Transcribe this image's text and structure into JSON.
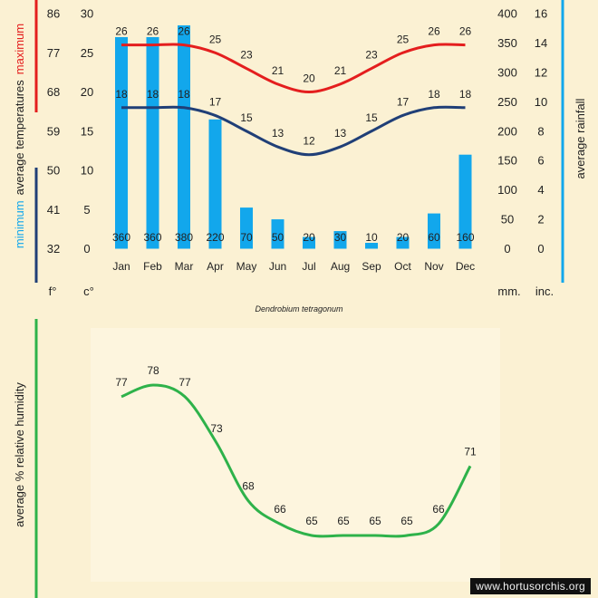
{
  "colors": {
    "background": "#fbf1d3",
    "plot_background": "#fdf5de",
    "maximum": "#e41e1e",
    "minimum": "#203f77",
    "rainfall": "#12a7ec",
    "humidity": "#2eb24a"
  },
  "labels": {
    "maximum": "maximum",
    "average_temperatures": "average temperatures",
    "minimum": "minimum",
    "average_rainfall": "average rainfall",
    "fahrenheit": "f°",
    "celsius": "c°",
    "mm": "mm.",
    "inches": "inc.",
    "species": "Dendrobium tetragonum",
    "humidity_axis": "average % relative humidity",
    "watermark": "www.hortusorchis.org"
  },
  "chart_data": [
    {
      "type": "bar",
      "categories": [
        "Jan",
        "Feb",
        "Mar",
        "Apr",
        "May",
        "Jun",
        "Jul",
        "Aug",
        "Sep",
        "Oct",
        "Nov",
        "Dec"
      ],
      "series": [
        {
          "name": "maximum",
          "kind": "line",
          "axis": "celsius",
          "values": [
            26,
            26,
            26,
            25,
            23,
            21,
            20,
            21,
            23,
            25,
            26,
            26
          ]
        },
        {
          "name": "minimum",
          "kind": "line",
          "axis": "celsius",
          "values": [
            18,
            18,
            18,
            17,
            15,
            13,
            12,
            13,
            15,
            17,
            18,
            18
          ]
        },
        {
          "name": "average rainfall",
          "kind": "bar",
          "axis": "mm",
          "values": [
            360,
            360,
            380,
            220,
            70,
            50,
            20,
            30,
            10,
            20,
            60,
            160
          ]
        }
      ],
      "axes": {
        "fahrenheit": {
          "ticks": [
            "86",
            "77",
            "68",
            "59",
            "50",
            "41",
            "32"
          ]
        },
        "celsius": {
          "ylim": [
            0,
            30
          ],
          "ticks": [
            "30",
            "25",
            "20",
            "15",
            "10",
            "5",
            "0"
          ]
        },
        "mm": {
          "ylim": [
            0,
            400
          ],
          "ticks": [
            "400",
            "350",
            "300",
            "250",
            "200",
            "150",
            "100",
            "50",
            "0"
          ]
        },
        "inches": {
          "ticks": [
            "16",
            "14",
            "12",
            "10",
            "8",
            "6",
            "4",
            "2",
            "0"
          ]
        }
      },
      "grid": false
    },
    {
      "type": "line",
      "categories": [
        "Jan",
        "Feb",
        "Mar",
        "Apr",
        "May",
        "Jun",
        "Jul",
        "Aug",
        "Sep",
        "Oct",
        "Nov",
        "Dec"
      ],
      "series": [
        {
          "name": "average % relative humidity",
          "values": [
            77,
            78,
            77,
            73,
            68,
            66,
            65,
            65,
            65,
            65,
            66,
            71
          ]
        }
      ],
      "grid": false
    }
  ]
}
